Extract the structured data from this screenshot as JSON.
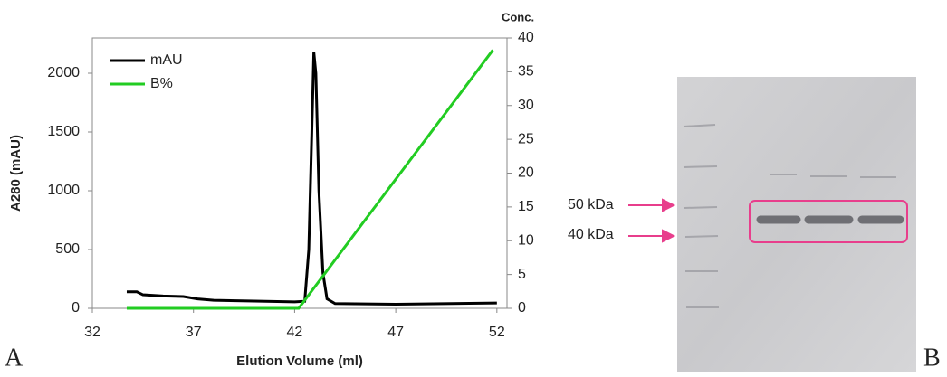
{
  "chart_data": {
    "type": "line",
    "xlabel": "Elution Volume (ml)",
    "ylabel": "A280 (mAU)",
    "y2label": "Conc.",
    "xlim": [
      32,
      52.5
    ],
    "xticks": [
      32,
      37,
      42,
      47,
      52
    ],
    "ylim": [
      0,
      2300
    ],
    "yticks": [
      0,
      500,
      1000,
      1500,
      2000
    ],
    "y2lim": [
      0,
      40
    ],
    "y2ticks": [
      0,
      5,
      10,
      15,
      20,
      25,
      30,
      35,
      40
    ],
    "legend": "upper left",
    "series": [
      {
        "name": "mAU",
        "color": "#000000",
        "x": [
          33.7,
          34.2,
          34.5,
          35.5,
          36.5,
          37.2,
          38,
          40,
          42,
          42.5,
          42.7,
          42.85,
          42.95,
          43.05,
          43.2,
          43.4,
          43.6,
          44,
          47,
          52
        ],
        "values": [
          140,
          140,
          115,
          105,
          100,
          80,
          68,
          62,
          55,
          60,
          500,
          1500,
          2180,
          2000,
          1000,
          300,
          80,
          40,
          35,
          45
        ]
      },
      {
        "name": "B%",
        "color": "#22cc22",
        "axis": "y2",
        "x": [
          33.7,
          42.2,
          51.8
        ],
        "values": [
          0,
          0,
          38.2
        ]
      }
    ]
  },
  "panel_labels": [
    "A",
    "B"
  ],
  "gel": {
    "markers": [
      "50 kDa",
      "40 kDa"
    ]
  }
}
